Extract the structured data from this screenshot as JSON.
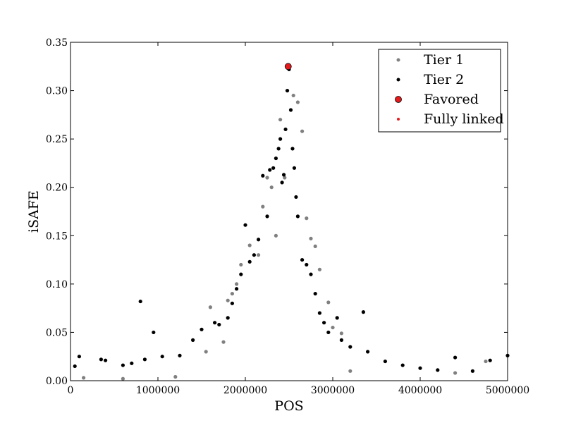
{
  "chart_data": {
    "type": "scatter",
    "title": "",
    "xlabel": "POS",
    "ylabel": "iSAFE",
    "xlim": [
      0,
      5000000
    ],
    "ylim": [
      0,
      0.35
    ],
    "x_ticks": [
      0,
      1000000,
      2000000,
      3000000,
      4000000,
      5000000
    ],
    "x_tick_labels": [
      "0",
      "1000000",
      "2000000",
      "3000000",
      "4000000",
      "5000000"
    ],
    "y_ticks": [
      0,
      0.05,
      0.1,
      0.15,
      0.2,
      0.25,
      0.3,
      0.35
    ],
    "y_tick_labels": [
      "0.00",
      "0.05",
      "0.10",
      "0.15",
      "0.20",
      "0.25",
      "0.30",
      "0.35"
    ],
    "grid": false,
    "legend_position": "top-right",
    "series": [
      {
        "name": "Tier 1",
        "color": "#808080",
        "marker": "small-circle",
        "points": [
          [
            150000,
            0.003
          ],
          [
            600000,
            0.002
          ],
          [
            1200000,
            0.004
          ],
          [
            1550000,
            0.03
          ],
          [
            1600000,
            0.076
          ],
          [
            1750000,
            0.04
          ],
          [
            1800000,
            0.083
          ],
          [
            1850000,
            0.09
          ],
          [
            1900000,
            0.1
          ],
          [
            1950000,
            0.12
          ],
          [
            2050000,
            0.14
          ],
          [
            2150000,
            0.13
          ],
          [
            2200000,
            0.18
          ],
          [
            2250000,
            0.21
          ],
          [
            2300000,
            0.2
          ],
          [
            2350000,
            0.15
          ],
          [
            2400000,
            0.27
          ],
          [
            2450000,
            0.21
          ],
          [
            2550000,
            0.295
          ],
          [
            2600000,
            0.288
          ],
          [
            2650000,
            0.258
          ],
          [
            2700000,
            0.168
          ],
          [
            2750000,
            0.147
          ],
          [
            2800000,
            0.139
          ],
          [
            2850000,
            0.115
          ],
          [
            2950000,
            0.081
          ],
          [
            3000000,
            0.055
          ],
          [
            3100000,
            0.049
          ],
          [
            3200000,
            0.01
          ],
          [
            4400000,
            0.008
          ],
          [
            4750000,
            0.02
          ]
        ]
      },
      {
        "name": "Tier 2",
        "color": "#000000",
        "marker": "small-circle",
        "points": [
          [
            50000,
            0.015
          ],
          [
            100000,
            0.025
          ],
          [
            350000,
            0.022
          ],
          [
            400000,
            0.021
          ],
          [
            600000,
            0.016
          ],
          [
            700000,
            0.018
          ],
          [
            800000,
            0.082
          ],
          [
            850000,
            0.022
          ],
          [
            950000,
            0.05
          ],
          [
            1050000,
            0.025
          ],
          [
            1250000,
            0.026
          ],
          [
            1400000,
            0.042
          ],
          [
            1500000,
            0.053
          ],
          [
            1650000,
            0.06
          ],
          [
            1700000,
            0.058
          ],
          [
            1800000,
            0.065
          ],
          [
            1850000,
            0.08
          ],
          [
            1900000,
            0.095
          ],
          [
            1950000,
            0.11
          ],
          [
            2000000,
            0.161
          ],
          [
            2050000,
            0.123
          ],
          [
            2100000,
            0.13
          ],
          [
            2150000,
            0.146
          ],
          [
            2200000,
            0.212
          ],
          [
            2250000,
            0.17
          ],
          [
            2280000,
            0.218
          ],
          [
            2320000,
            0.22
          ],
          [
            2350000,
            0.23
          ],
          [
            2380000,
            0.24
          ],
          [
            2400000,
            0.25
          ],
          [
            2420000,
            0.205
          ],
          [
            2440000,
            0.213
          ],
          [
            2460000,
            0.26
          ],
          [
            2480000,
            0.3
          ],
          [
            2500000,
            0.322
          ],
          [
            2520000,
            0.28
          ],
          [
            2540000,
            0.24
          ],
          [
            2560000,
            0.22
          ],
          [
            2580000,
            0.19
          ],
          [
            2600000,
            0.17
          ],
          [
            2650000,
            0.125
          ],
          [
            2700000,
            0.12
          ],
          [
            2750000,
            0.11
          ],
          [
            2800000,
            0.09
          ],
          [
            2850000,
            0.07
          ],
          [
            2900000,
            0.06
          ],
          [
            2950000,
            0.05
          ],
          [
            3050000,
            0.065
          ],
          [
            3100000,
            0.042
          ],
          [
            3200000,
            0.035
          ],
          [
            3350000,
            0.071
          ],
          [
            3400000,
            0.03
          ],
          [
            3600000,
            0.02
          ],
          [
            3800000,
            0.016
          ],
          [
            4000000,
            0.013
          ],
          [
            4200000,
            0.011
          ],
          [
            4400000,
            0.024
          ],
          [
            4600000,
            0.01
          ],
          [
            4800000,
            0.021
          ],
          [
            5000000,
            0.026
          ]
        ]
      },
      {
        "name": "Favored",
        "color": "#e41a1c",
        "marker": "large-circle",
        "points": [
          [
            2490000,
            0.325
          ]
        ]
      },
      {
        "name": "Fully linked",
        "color": "#e41a1c",
        "marker": "dot",
        "points": []
      }
    ]
  }
}
